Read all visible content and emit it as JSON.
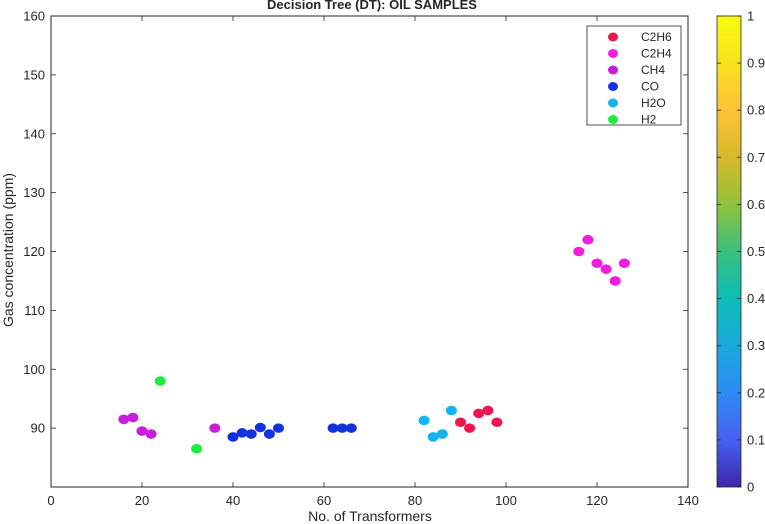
{
  "chart_data": {
    "type": "scatter",
    "title": "Decision Tree (DT): OIL SAMPLES",
    "xlabel": "No. of Transformers",
    "ylabel": "Gas concentration (ppm)",
    "xlim": [
      0,
      140
    ],
    "ylim": [
      80,
      160
    ],
    "xticks": [
      0,
      20,
      40,
      60,
      80,
      100,
      120,
      140
    ],
    "yticks": [
      90,
      100,
      110,
      120,
      130,
      140,
      150,
      160
    ],
    "grid": false,
    "legend_position": "top-right",
    "series": [
      {
        "name": "C2H6",
        "color": "#ee1650",
        "x": [
          90,
          92,
          94,
          96,
          98
        ],
        "y": [
          91,
          90,
          92.5,
          93,
          91
        ]
      },
      {
        "name": "C2H4",
        "color": "#f21ce0",
        "x": [
          116,
          118,
          120,
          122,
          124,
          126
        ],
        "y": [
          120,
          122,
          118,
          117,
          115,
          118
        ]
      },
      {
        "name": "CH4",
        "color": "#c81edc",
        "x": [
          16,
          18,
          20,
          22,
          36
        ],
        "y": [
          91.5,
          91.8,
          89.5,
          89,
          90
        ]
      },
      {
        "name": "CO",
        "color": "#1432dc",
        "x": [
          40,
          42,
          44,
          46,
          48,
          50,
          62,
          64,
          66
        ],
        "y": [
          88.5,
          89.2,
          89,
          90.1,
          89,
          90,
          90,
          90,
          90
        ]
      },
      {
        "name": "H2O",
        "color": "#14b4f0",
        "x": [
          82,
          84,
          86,
          88
        ],
        "y": [
          91.3,
          88.5,
          89,
          93
        ]
      },
      {
        "name": "H2",
        "color": "#19ee3c",
        "x": [
          24,
          32
        ],
        "y": [
          98,
          86.5
        ]
      }
    ],
    "colorbar": {
      "range": [
        0,
        1
      ],
      "ticks": [
        "0",
        "0.1",
        "0.2",
        "0.3",
        "0.4",
        "0.5",
        "0.6",
        "0.7",
        "0.8",
        "0.9",
        "1"
      ],
      "colormap": [
        "#3e26a8",
        "#4760f2",
        "#2d8bf3",
        "#1ba8dc",
        "#0cbdb6",
        "#3bc07e",
        "#91c23a",
        "#d8b92a",
        "#fec13a",
        "#f8e21e",
        "#f9fb0e"
      ]
    }
  }
}
